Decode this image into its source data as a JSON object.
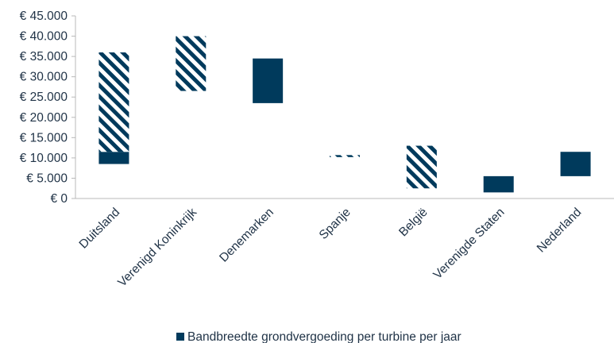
{
  "colors": {
    "bar": "#003a5c",
    "axis": "#b8b8b8",
    "text": "#1f3246"
  },
  "chart_data": {
    "type": "bar",
    "subtype": "floating-range",
    "categories": [
      "Duitsland",
      "Verenigd Koninkrijk",
      "Denemarken",
      "Spanje",
      "België",
      "Verenigde Staten",
      "Nederland"
    ],
    "series": [
      {
        "name": "Bandbreedte grondvergoeding per turbine per jaar",
        "style": "solid",
        "ranges": [
          [
            8500,
            11500
          ],
          null,
          [
            23500,
            34500
          ],
          null,
          null,
          [
            1500,
            5500
          ],
          [
            5500,
            11500
          ]
        ]
      },
      {
        "style": "hatched",
        "ranges": [
          [
            11500,
            36000
          ],
          [
            26500,
            40000
          ],
          null,
          [
            10200,
            10700
          ],
          [
            2500,
            13000
          ],
          null,
          null
        ]
      }
    ],
    "yticks": [
      "€ 0",
      "€ 5.000",
      "€ 10.000",
      "€ 15.000",
      "€ 20.000",
      "€ 25.000",
      "€ 30.000",
      "€ 35.000",
      "€ 40.000",
      "€ 45.000"
    ],
    "ylim": [
      0,
      45000
    ],
    "ystep": 5000,
    "grid": false,
    "legend": {
      "position": "bottom",
      "items": [
        "Bandbreedte grondvergoeding per turbine per jaar"
      ]
    }
  }
}
